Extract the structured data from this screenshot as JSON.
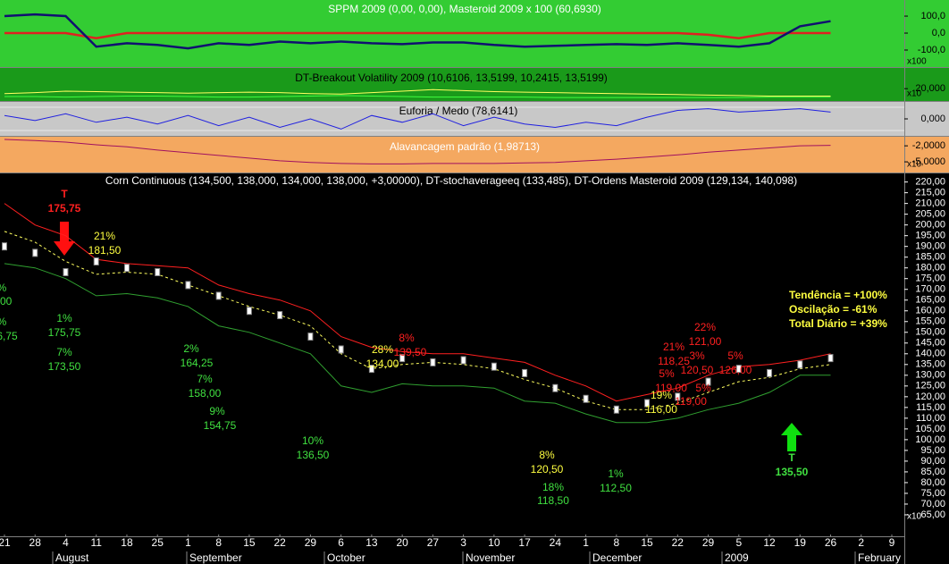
{
  "x_axis": {
    "days": [
      "21",
      "28",
      "4",
      "11",
      "18",
      "25",
      "1",
      "8",
      "15",
      "22",
      "29",
      "6",
      "13",
      "20",
      "27",
      "3",
      "10",
      "17",
      "24",
      "1",
      "8",
      "15",
      "22",
      "29",
      "5",
      "12",
      "19",
      "26",
      "2",
      "9"
    ],
    "months": [
      "August",
      "September",
      "October",
      "November",
      "December",
      "2009",
      "February"
    ]
  },
  "sppm": {
    "title": "SPPM 2009 (0,00, 0,00), Masteroid 2009 x 100 (60,6930)",
    "ylim": [
      -200,
      195
    ],
    "yticks": [
      {
        "value": 100,
        "label": "100,0"
      },
      {
        "value": 0,
        "label": "0,0"
      },
      {
        "value": -100,
        "label": "-100,0"
      }
    ],
    "scale_label": "x100",
    "series": [
      {
        "color": "#e02020",
        "values": [
          0,
          0,
          0,
          -30,
          0,
          0,
          0,
          0,
          0,
          0,
          0,
          0,
          0,
          0,
          0,
          0,
          0,
          0,
          0,
          0,
          0,
          0,
          0,
          -10,
          -30,
          0,
          0,
          0,
          null,
          null
        ]
      },
      {
        "color": "#101070",
        "values": [
          100,
          110,
          100,
          -80,
          -60,
          -70,
          -90,
          -60,
          -70,
          -50,
          -60,
          -50,
          -60,
          -65,
          -55,
          -55,
          -70,
          -80,
          -75,
          -70,
          -65,
          -70,
          -60,
          -70,
          -80,
          -60,
          40,
          70,
          null,
          null
        ]
      }
    ]
  },
  "breakout": {
    "title": "DT-Breakout Volatility 2009 (10,6106, 13,5199, 10,2415, 13,5199)",
    "ylim": [
      -5,
      62
    ],
    "yticks": [
      {
        "value": 20,
        "label": "20,000"
      }
    ],
    "scale_label": "x10",
    "series": [
      {
        "color": "#ffff60",
        "values": [
          10,
          12,
          15,
          14,
          13,
          12,
          11,
          12,
          13,
          12,
          10,
          9,
          12,
          15,
          18,
          16,
          14,
          13,
          12,
          11,
          10,
          9,
          8,
          7,
          6,
          5,
          5,
          5,
          null,
          null
        ]
      },
      {
        "color": "#40ff40",
        "values": [
          4,
          4,
          3,
          4,
          5,
          5,
          4,
          3,
          3,
          4,
          5,
          6,
          5,
          4,
          3,
          3,
          3,
          3,
          2,
          2,
          2,
          2,
          2,
          2,
          2,
          3,
          3,
          3,
          null,
          null
        ]
      }
    ]
  },
  "euforia": {
    "title": "Euforia / Medo (78,6141)",
    "ylim": [
      -100,
      100
    ],
    "yticks": [
      {
        "value": 0,
        "label": "0,000"
      }
    ],
    "series": [
      {
        "color": "#2020e0",
        "values": [
          20,
          -10,
          30,
          -20,
          10,
          -30,
          20,
          -40,
          10,
          -50,
          0,
          -60,
          20,
          -20,
          30,
          -40,
          10,
          -30,
          -50,
          -20,
          -40,
          10,
          50,
          60,
          40,
          50,
          60,
          40,
          null,
          null
        ]
      }
    ]
  },
  "alavancagem": {
    "title": "Alavancagem padrão (1,98713)",
    "ylim": [
      -7,
      -0.3
    ],
    "yticks": [
      {
        "value": -2,
        "label": "-2,0000"
      },
      {
        "value": -5,
        "label": "-5,0000"
      }
    ],
    "scale_label": "x10",
    "series": [
      {
        "color": "#a01060",
        "values": [
          -0.8,
          -1,
          -1.3,
          -1.8,
          -2.2,
          -2.8,
          -3.3,
          -3.8,
          -4.3,
          -4.8,
          -5.1,
          -5.3,
          -5.4,
          -5.4,
          -5.3,
          -5.3,
          -5.3,
          -5.2,
          -5.1,
          -4.8,
          -4.5,
          -4.1,
          -3.7,
          -3.2,
          -2.8,
          -2.4,
          -2,
          -1.9,
          null,
          null
        ]
      }
    ]
  },
  "main": {
    "title": "Corn Continuous (134,500, 138,000, 134,000, 138,000, +3,00000), DT-stochaverageeq (133,485), DT-Ordens Masteroid 2009 (129,134, 140,098)",
    "ylim": [
      55,
      224
    ],
    "yticks": [
      {
        "value": 220,
        "label": "220,00"
      },
      {
        "value": 215,
        "label": "215,00"
      },
      {
        "value": 210,
        "label": "210,00"
      },
      {
        "value": 205,
        "label": "205,00"
      },
      {
        "value": 200,
        "label": "200,00"
      },
      {
        "value": 195,
        "label": "195,00"
      },
      {
        "value": 190,
        "label": "190,00"
      },
      {
        "value": 185,
        "label": "185,00"
      },
      {
        "value": 180,
        "label": "180,00"
      },
      {
        "value": 175,
        "label": "175,00"
      },
      {
        "value": 170,
        "label": "170,00"
      },
      {
        "value": 165,
        "label": "165,00"
      },
      {
        "value": 160,
        "label": "160,00"
      },
      {
        "value": 155,
        "label": "155,00"
      },
      {
        "value": 150,
        "label": "150,00"
      },
      {
        "value": 145,
        "label": "145,00"
      },
      {
        "value": 140,
        "label": "140,00"
      },
      {
        "value": 135,
        "label": "135,00"
      },
      {
        "value": 130,
        "label": "130,00"
      },
      {
        "value": 125,
        "label": "125,00"
      },
      {
        "value": 120,
        "label": "120,00"
      },
      {
        "value": 115,
        "label": "115,00"
      },
      {
        "value": 110,
        "label": "110,00"
      },
      {
        "value": 105,
        "label": "105,00"
      },
      {
        "value": 100,
        "label": "100,00"
      },
      {
        "value": 95,
        "label": "95,00"
      },
      {
        "value": 90,
        "label": "90,00"
      },
      {
        "value": 85,
        "label": "85,00"
      },
      {
        "value": 80,
        "label": "80,00"
      },
      {
        "value": 75,
        "label": "75,00"
      },
      {
        "value": 70,
        "label": "70,00"
      },
      {
        "value": 65,
        "label": "65,00"
      }
    ],
    "scale_label": "x10",
    "series": [
      {
        "color": "#ff2020",
        "values": [
          210,
          200,
          195,
          184,
          182,
          181,
          180,
          172,
          168,
          165,
          160,
          148,
          143,
          141,
          140,
          140,
          138,
          136,
          130,
          125,
          118,
          121,
          124,
          130,
          134,
          135,
          137,
          140,
          null,
          null
        ]
      },
      {
        "color": "#30a030",
        "values": [
          182,
          180,
          175,
          167,
          168,
          166,
          162,
          153,
          150,
          145,
          140,
          125,
          122,
          126,
          125,
          125,
          124,
          118,
          117,
          112,
          108,
          108,
          110,
          114,
          117,
          122,
          130,
          130,
          null,
          null
        ]
      },
      {
        "color": "#ffff60",
        "dashed": true,
        "values": [
          197,
          192,
          183,
          177,
          178,
          177,
          172,
          167,
          162,
          158,
          153,
          140,
          133,
          135,
          136,
          135,
          133,
          128,
          124,
          118,
          114,
          114,
          117,
          122,
          127,
          129,
          133,
          135,
          null,
          null
        ]
      }
    ],
    "closes": {
      "color": "#ffffff",
      "values": [
        190,
        187,
        178,
        183,
        180,
        178,
        172,
        167,
        160,
        158,
        148,
        142,
        133,
        138,
        136,
        137,
        134,
        131,
        124,
        119,
        114,
        117,
        120,
        127,
        133,
        131,
        135,
        138,
        null,
        null
      ]
    },
    "annotations": [
      {
        "text": "T",
        "color": "#ff2020"
      },
      {
        "text": "175,75",
        "color": "#ff2020"
      },
      {
        "text": "21%",
        "color": "#ffff40"
      },
      {
        "text": "181,50",
        "color": "#ffff40"
      },
      {
        "text": "%",
        "color": "#40e040"
      },
      {
        "text": ",00",
        "color": "#40e040"
      },
      {
        "text": "%",
        "color": "#40e040"
      },
      {
        "text": "6,75",
        "color": "#40e040"
      },
      {
        "text": "1%",
        "color": "#40e040"
      },
      {
        "text": "175,75",
        "color": "#40e040"
      },
      {
        "text": "7%",
        "color": "#40e040"
      },
      {
        "text": "173,50",
        "color": "#40e040"
      },
      {
        "text": "2%",
        "color": "#40e040"
      },
      {
        "text": "164,25",
        "color": "#40e040"
      },
      {
        "text": "7%",
        "color": "#40e040"
      },
      {
        "text": "158,00",
        "color": "#40e040"
      },
      {
        "text": "9%",
        "color": "#40e040"
      },
      {
        "text": "154,75",
        "color": "#40e040"
      },
      {
        "text": "10%",
        "color": "#40e040"
      },
      {
        "text": "136,50",
        "color": "#40e040"
      },
      {
        "text": "28%",
        "color": "#ffff40"
      },
      {
        "text": "134,00",
        "color": "#ffff40"
      },
      {
        "text": "8%",
        "color": "#ff2020"
      },
      {
        "text": "139,50",
        "color": "#ff2020"
      },
      {
        "text": "8%",
        "color": "#ffff40"
      },
      {
        "text": "120,50",
        "color": "#ffff40"
      },
      {
        "text": "18%",
        "color": "#40e040"
      },
      {
        "text": "118,50",
        "color": "#40e040"
      },
      {
        "text": "1%",
        "color": "#40e040"
      },
      {
        "text": "112,50",
        "color": "#40e040"
      },
      {
        "text": "19%",
        "color": "#ffff40"
      },
      {
        "text": "116,00",
        "color": "#ffff40"
      },
      {
        "text": "21%",
        "color": "#ff2020"
      },
      {
        "text": "118,25",
        "color": "#ff2020"
      },
      {
        "text": "5%",
        "color": "#ff2020"
      },
      {
        "text": "119,00",
        "color": "#ff2020"
      },
      {
        "text": "5%",
        "color": "#ff2020"
      },
      {
        "text": "119,00",
        "color": "#ff2020"
      },
      {
        "text": "22%",
        "color": "#ff2020"
      },
      {
        "text": "121,00",
        "color": "#ff2020"
      },
      {
        "text": "3%",
        "color": "#ff2020"
      },
      {
        "text": "120,50",
        "color": "#ff2020"
      },
      {
        "text": "5%",
        "color": "#ff2020"
      },
      {
        "text": "126,00",
        "color": "#ff2020"
      },
      {
        "text": "T",
        "color": "#40e040"
      },
      {
        "text": "135,50",
        "color": "#40e040"
      }
    ],
    "summary": {
      "color": "#ffff40",
      "lines": [
        "Tendência = +100%",
        "Oscilação = -61%",
        "Total Diário = +39%"
      ]
    }
  }
}
